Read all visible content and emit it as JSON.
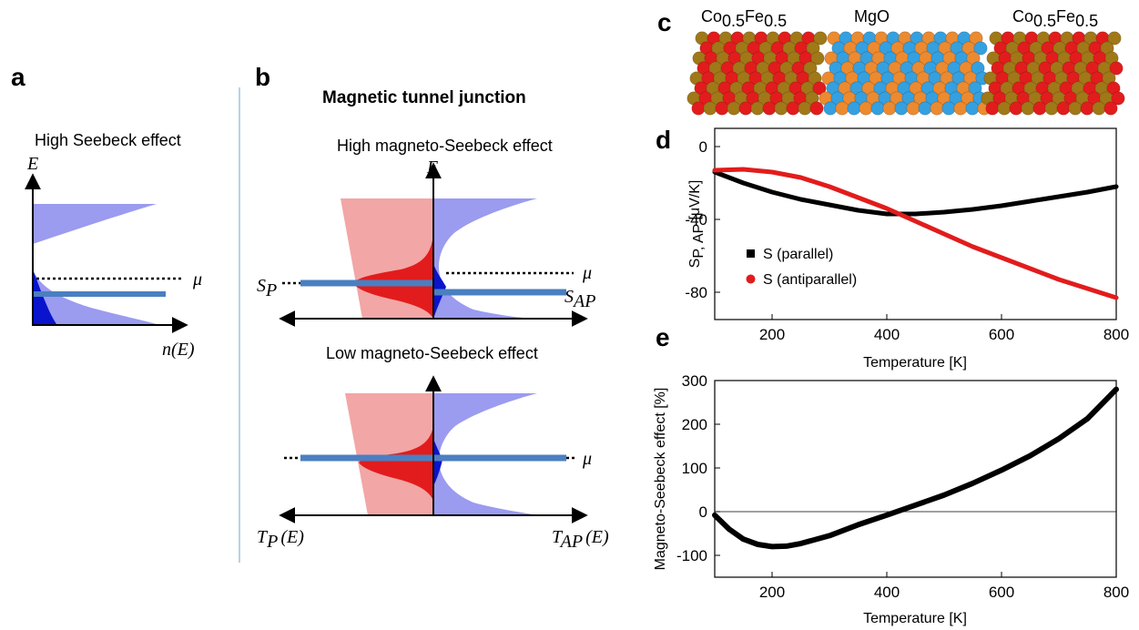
{
  "panels": {
    "a": "a",
    "b": "b",
    "c": "c",
    "d": "d",
    "e": "e"
  },
  "panel_a": {
    "title": "High Seebeck effect",
    "y_axis": "E",
    "x_axis": "n(E)",
    "mu": "μ"
  },
  "panel_b": {
    "heading": "Magnetic tunnel junction",
    "top_title": "High magneto-Seebeck effect",
    "bottom_title": "Low magneto-Seebeck effect",
    "y_axis": "E",
    "mu_top": "μ",
    "mu_bottom": "μ",
    "sp": {
      "main": "S",
      "sub": "P"
    },
    "sap": {
      "main": "S",
      "sub": "AP"
    },
    "tp": {
      "main": "T",
      "sub": "P",
      "tail": "(E)"
    },
    "tap": {
      "main": "T",
      "sub": "AP",
      "tail": "(E)"
    }
  },
  "panel_c": {
    "left": {
      "a": "Co",
      "a_sub": "0.5",
      "b": "Fe",
      "b_sub": "0.5"
    },
    "middle": "MgO",
    "right": {
      "a": "Co",
      "a_sub": "0.5",
      "b": "Fe",
      "b_sub": "0.5"
    },
    "colors": {
      "co": "#a07818",
      "fe": "#e21c1c",
      "mg": "#35a0e0",
      "o": "#ec8a30"
    }
  },
  "chart_data": [
    {
      "panel": "d",
      "type": "line",
      "xlabel": "Temperature [K]",
      "ylabel": {
        "main": "S",
        "sub": "P, AP",
        "unit": " [μV/K]"
      },
      "xlim": [
        100,
        800
      ],
      "ylim": [
        -95,
        10
      ],
      "xticks": [
        200,
        400,
        600,
        800
      ],
      "yticks": [
        0,
        -40,
        -80
      ],
      "legend_position": "center-left",
      "series": [
        {
          "name": "S (parallel)",
          "color": "#000000",
          "x": [
            100,
            150,
            200,
            250,
            300,
            350,
            400,
            450,
            500,
            550,
            600,
            650,
            700,
            750,
            800
          ],
          "y": [
            -14,
            -20,
            -25,
            -29,
            -32,
            -35,
            -37,
            -37,
            -36,
            -34.5,
            -32.5,
            -30,
            -27.5,
            -25,
            -22
          ]
        },
        {
          "name": "S (antiparallel)",
          "color": "#e21c1c",
          "x": [
            100,
            150,
            200,
            250,
            300,
            350,
            400,
            450,
            500,
            550,
            600,
            650,
            700,
            750,
            800
          ],
          "y": [
            -13,
            -12.5,
            -14,
            -17,
            -22,
            -28,
            -34,
            -41,
            -48,
            -55,
            -61,
            -67,
            -73,
            -78,
            -83
          ]
        }
      ]
    },
    {
      "panel": "e",
      "type": "line",
      "xlabel": "Temperature [K]",
      "ylabel": "Magneto-Seebeck effect [%]",
      "xlim": [
        100,
        800
      ],
      "ylim": [
        -150,
        300
      ],
      "xticks": [
        200,
        400,
        600,
        800
      ],
      "yticks": [
        300,
        200,
        100,
        0,
        -100
      ],
      "series": [
        {
          "color": "#000000",
          "x": [
            100,
            125,
            150,
            175,
            200,
            225,
            250,
            300,
            350,
            400,
            450,
            500,
            550,
            600,
            650,
            700,
            750,
            800
          ],
          "y": [
            -8,
            -40,
            -63,
            -75,
            -80,
            -79,
            -73,
            -55,
            -30,
            -8,
            15,
            38,
            65,
            95,
            128,
            167,
            213,
            280
          ]
        }
      ]
    }
  ]
}
